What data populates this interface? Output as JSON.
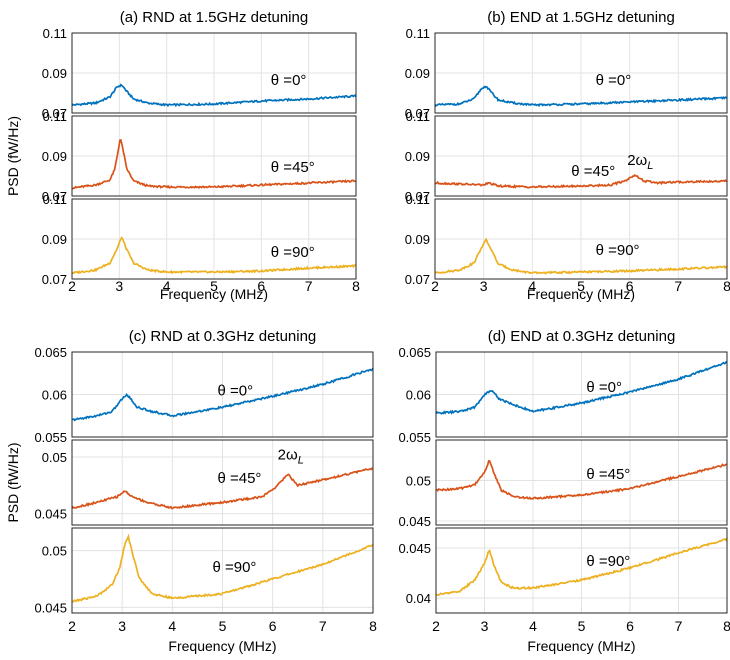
{
  "colors": {
    "blue": "#0072BD",
    "orange": "#D95319",
    "yellow": "#EDB120",
    "grid": "#e3e3e3",
    "axis": "#262626"
  },
  "chart_data": [
    {
      "type": "line",
      "title": "(a) RND at 1.5GHz detuning",
      "xlabel": "Frequency (MHz)",
      "ylabel": "PSD (fW/Hz)",
      "xlim": [
        2,
        8
      ],
      "xticks": [
        "2",
        "3",
        "4",
        "5",
        "6",
        "7",
        "8"
      ],
      "grid": true,
      "panels": [
        {
          "series": [
            {
              "name": "θ =0°",
              "color": "#0072BD",
              "x": [
                2,
                2.5,
                2.8,
                2.95,
                3.05,
                3.15,
                3.3,
                3.6,
                4,
                5,
                6,
                7,
                8
              ],
              "y": [
                0.074,
                0.075,
                0.078,
                0.083,
                0.084,
                0.081,
                0.077,
                0.075,
                0.074,
                0.0745,
                0.076,
                0.077,
                0.0785
              ]
            }
          ],
          "ylim": [
            0.07,
            0.11
          ],
          "yticks": [
            "0.07",
            "0.09",
            "0.11"
          ],
          "annotations": [
            {
              "text": "θ =0°",
              "x": 6.2,
              "y": 0.084
            }
          ]
        },
        {
          "series": [
            {
              "name": "θ =45°",
              "color": "#D95319",
              "x": [
                2,
                2.5,
                2.8,
                2.9,
                2.97,
                3.02,
                3.08,
                3.15,
                3.3,
                3.6,
                4,
                5,
                6,
                7,
                8
              ],
              "y": [
                0.074,
                0.0755,
                0.078,
                0.083,
                0.092,
                0.099,
                0.093,
                0.084,
                0.0775,
                0.075,
                0.0745,
                0.0745,
                0.0755,
                0.0765,
                0.0775
              ]
            }
          ],
          "ylim": [
            0.07,
            0.11
          ],
          "yticks": [
            "0.07",
            "0.09",
            "0.11"
          ],
          "annotations": [
            {
              "text": "θ =45°",
              "x": 6.2,
              "y": 0.082
            }
          ]
        },
        {
          "series": [
            {
              "name": "θ =90°",
              "color": "#EDB120",
              "x": [
                2,
                2.5,
                2.8,
                2.95,
                3.05,
                3.15,
                3.3,
                3.6,
                4,
                5,
                6,
                7,
                8
              ],
              "y": [
                0.073,
                0.0745,
                0.078,
                0.085,
                0.091,
                0.085,
                0.078,
                0.0745,
                0.0735,
                0.0735,
                0.074,
                0.0755,
                0.0765
              ]
            }
          ],
          "ylim": [
            0.07,
            0.11
          ],
          "yticks": [
            "0.07",
            "0.09",
            "0.11"
          ],
          "annotations": [
            {
              "text": "θ =90°",
              "x": 6.2,
              "y": 0.081
            }
          ]
        }
      ]
    },
    {
      "type": "line",
      "title": "(b) END at 1.5GHz detuning",
      "xlabel": "Frequency (MHz)",
      "ylabel": "",
      "xlim": [
        2,
        8
      ],
      "xticks": [
        "2",
        "3",
        "4",
        "5",
        "6",
        "7",
        "8"
      ],
      "grid": true,
      "panels": [
        {
          "series": [
            {
              "name": "θ =0°",
              "color": "#0072BD",
              "x": [
                2,
                2.5,
                2.8,
                2.95,
                3.05,
                3.15,
                3.3,
                3.6,
                4,
                5,
                6,
                7,
                8
              ],
              "y": [
                0.074,
                0.0745,
                0.077,
                0.082,
                0.0835,
                0.0805,
                0.0765,
                0.075,
                0.074,
                0.0745,
                0.0755,
                0.0765,
                0.0775
              ]
            }
          ],
          "ylim": [
            0.07,
            0.11
          ],
          "yticks": [
            "0.07",
            "0.09",
            "0.11"
          ],
          "annotations": [
            {
              "text": "θ =0°",
              "x": 5.3,
              "y": 0.084
            }
          ]
        },
        {
          "series": [
            {
              "name": "θ =45°",
              "color": "#D95319",
              "x": [
                2,
                2.5,
                3.0,
                3.1,
                3.3,
                4,
                5,
                5.6,
                5.9,
                6.1,
                6.3,
                6.6,
                7,
                8
              ],
              "y": [
                0.0765,
                0.076,
                0.0755,
                0.0765,
                0.075,
                0.0745,
                0.075,
                0.0755,
                0.0775,
                0.0805,
                0.0775,
                0.0765,
                0.077,
                0.0775
              ]
            }
          ],
          "ylim": [
            0.07,
            0.11
          ],
          "yticks": [
            "0.07",
            "0.09",
            "0.11"
          ],
          "annotations": [
            {
              "text": "θ =45°",
              "x": 4.8,
              "y": 0.08
            }
          ]
        },
        {
          "series": [
            {
              "name": "θ =90°",
              "color": "#EDB120",
              "x": [
                2,
                2.5,
                2.8,
                2.95,
                3.05,
                3.15,
                3.3,
                3.6,
                4,
                5,
                6,
                7,
                8
              ],
              "y": [
                0.073,
                0.0745,
                0.078,
                0.0855,
                0.0895,
                0.085,
                0.0775,
                0.0745,
                0.073,
                0.0735,
                0.074,
                0.075,
                0.076
              ]
            }
          ],
          "ylim": [
            0.07,
            0.11
          ],
          "yticks": [
            "0.07",
            "0.09",
            "0.11"
          ],
          "annotations": [
            {
              "text": "θ =90°",
              "x": 5.3,
              "y": 0.082
            }
          ]
        }
      ]
    },
    {
      "type": "line",
      "title": "(c) RND at 0.3GHz detuning",
      "xlabel": "Frequency (MHz)",
      "ylabel": "PSD (fW/Hz)",
      "xlim": [
        2,
        8
      ],
      "xticks": [
        "2",
        "3",
        "4",
        "5",
        "6",
        "7",
        "8"
      ],
      "grid": true,
      "panels": [
        {
          "series": [
            {
              "name": "θ =0°",
              "color": "#0072BD",
              "x": [
                2,
                2.5,
                2.8,
                3.0,
                3.1,
                3.3,
                3.6,
                4,
                4.5,
                5,
                6,
                7,
                8
              ],
              "y": [
                0.057,
                0.0575,
                0.058,
                0.0595,
                0.06,
                0.0585,
                0.058,
                0.0575,
                0.058,
                0.0585,
                0.0598,
                0.0612,
                0.063
              ]
            }
          ],
          "ylim": [
            0.055,
            0.065
          ],
          "yticks": [
            "0.055",
            "0.06",
            "0.065"
          ],
          "annotations": [
            {
              "text": "θ =0°",
              "x": 4.9,
              "y": 0.0599
            }
          ]
        },
        {
          "series": [
            {
              "name": "θ =45°",
              "color": "#D95319",
              "x": [
                2,
                2.5,
                2.9,
                3.05,
                3.2,
                3.5,
                4,
                5,
                5.8,
                6.1,
                6.3,
                6.5,
                7,
                8
              ],
              "y": [
                0.0455,
                0.046,
                0.0465,
                0.047,
                0.0465,
                0.046,
                0.0455,
                0.046,
                0.0465,
                0.0475,
                0.0485,
                0.0475,
                0.048,
                0.049
              ]
            }
          ],
          "ylim": [
            0.044,
            0.0515
          ],
          "yticks": [
            "0.045",
            "0.05"
          ],
          "annotations": [
            {
              "text": "θ =45°",
              "x": 4.9,
              "y": 0.0477
            }
          ]
        },
        {
          "series": [
            {
              "name": "θ =90°",
              "color": "#EDB120",
              "x": [
                2,
                2.5,
                2.8,
                2.95,
                3.05,
                3.12,
                3.2,
                3.35,
                3.6,
                4,
                5,
                6,
                7,
                8
              ],
              "y": [
                0.0455,
                0.046,
                0.047,
                0.0485,
                0.0505,
                0.0513,
                0.0498,
                0.0475,
                0.0462,
                0.0458,
                0.0462,
                0.0475,
                0.0488,
                0.0505
              ]
            }
          ],
          "ylim": [
            0.0445,
            0.052
          ],
          "yticks": [
            "0.045",
            "0.05"
          ],
          "annotations": [
            {
              "text": "θ =90°",
              "x": 4.8,
              "y": 0.0481
            }
          ]
        }
      ]
    },
    {
      "type": "line",
      "title": "(d) END at 0.3GHz detuning",
      "xlabel": "Frequency (MHz)",
      "ylabel": "",
      "xlim": [
        2,
        8
      ],
      "xticks": [
        "2",
        "3",
        "4",
        "5",
        "6",
        "7",
        "8"
      ],
      "grid": true,
      "panels": [
        {
          "series": [
            {
              "name": "θ =0°",
              "color": "#0072BD",
              "x": [
                2,
                2.5,
                2.8,
                3.0,
                3.15,
                3.3,
                3.6,
                4,
                4.5,
                5,
                6,
                7,
                8
              ],
              "y": [
                0.0578,
                0.058,
                0.0585,
                0.06,
                0.0605,
                0.0595,
                0.0588,
                0.058,
                0.0585,
                0.059,
                0.0603,
                0.0618,
                0.0638
              ]
            }
          ],
          "ylim": [
            0.055,
            0.065
          ],
          "yticks": [
            "0.055",
            "0.06",
            "0.065"
          ],
          "annotations": [
            {
              "text": "θ =0°",
              "x": 5.1,
              "y": 0.0603
            }
          ]
        },
        {
          "series": [
            {
              "name": "θ =45°",
              "color": "#D95319",
              "x": [
                2,
                2.5,
                2.8,
                3.0,
                3.1,
                3.2,
                3.35,
                3.6,
                4,
                5,
                6,
                7,
                8
              ],
              "y": [
                0.0488,
                0.049,
                0.0495,
                0.051,
                0.0525,
                0.0508,
                0.0488,
                0.048,
                0.0478,
                0.0482,
                0.049,
                0.0505,
                0.052
              ]
            }
          ],
          "ylim": [
            0.0445,
            0.055
          ],
          "yticks": [
            "0.045",
            "0.05"
          ],
          "annotations": [
            {
              "text": "θ =45°",
              "x": 5.1,
              "y": 0.0502
            }
          ]
        },
        {
          "series": [
            {
              "name": "θ =90°",
              "color": "#EDB120",
              "x": [
                2,
                2.5,
                2.8,
                3.0,
                3.1,
                3.2,
                3.35,
                3.6,
                4,
                5,
                6,
                7,
                8
              ],
              "y": [
                0.0403,
                0.0407,
                0.0418,
                0.0435,
                0.0448,
                0.0432,
                0.0415,
                0.041,
                0.041,
                0.0418,
                0.043,
                0.0445,
                0.0459
              ]
            }
          ],
          "ylim": [
            0.0385,
            0.047
          ],
          "yticks": [
            "0.04",
            "0.045"
          ],
          "annotations": [
            {
              "text": "θ =90°",
              "x": 5.1,
              "y": 0.0432
            }
          ]
        }
      ]
    }
  ],
  "extra_annotations": [
    {
      "chart": 1,
      "panel": 1,
      "text": "2ω",
      "sub": "L",
      "x": 5.95,
      "y": 0.0855
    },
    {
      "chart": 2,
      "panel": 1,
      "text": "2ω",
      "sub": "L",
      "x": 6.1,
      "y": 0.0498
    }
  ]
}
